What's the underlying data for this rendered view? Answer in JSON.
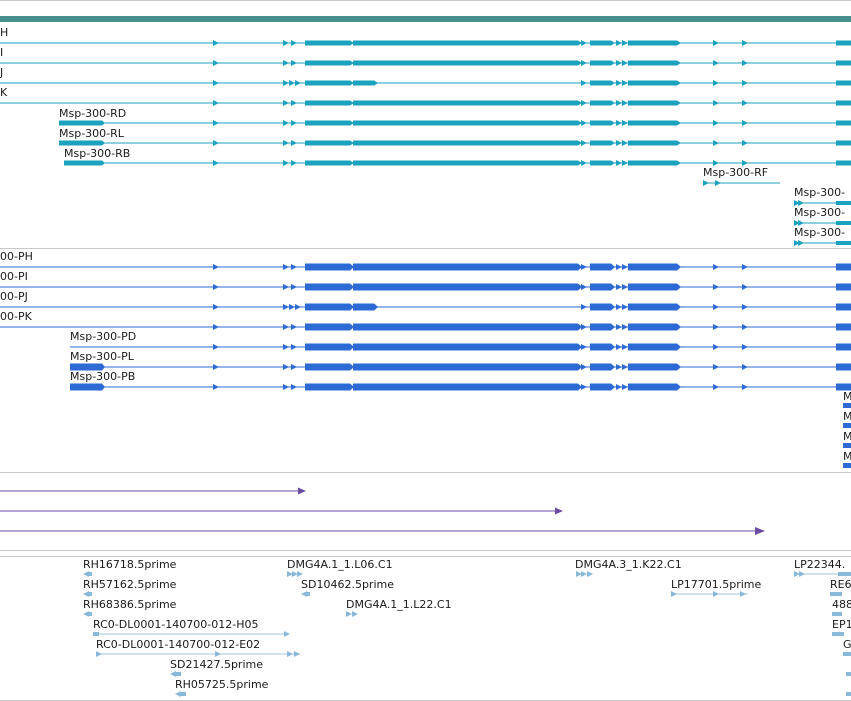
{
  "colors": {
    "gene_track_bar": "#468f8a",
    "transcript": "#1aa2bf",
    "transcript_line": "#1aa2bf",
    "protein": "#2e6ad4",
    "alignment": "#6b4ba4",
    "est": "#88b8da",
    "est_line": "#9cc5e4",
    "divider": "#c8c8c8"
  },
  "transcripts": {
    "labels": {
      "rh": "H",
      "ri": "I",
      "rj": "J",
      "rk": "K",
      "rd": "Msp-300-RD",
      "rl": "Msp-300-RL",
      "rb": "Msp-300-RB",
      "rf": "Msp-300-RF",
      "r9": "Msp-300-",
      "r10": "Msp-300-",
      "r11": "Msp-300-"
    }
  },
  "proteins": {
    "labels": {
      "ph": "00-PH",
      "pi": "00-PI",
      "pj": "00-PJ",
      "pk": "00-PK",
      "pd": "Msp-300-PD",
      "pl": "Msp-300-PL",
      "pb": "Msp-300-PB",
      "m1": "M",
      "m2": "M",
      "m3": "M",
      "m4": "M"
    }
  },
  "ests": {
    "labels": {
      "e1": "RH16718.5prime",
      "e2": "RH57162.5prime",
      "e3": "RH68386.5prime",
      "e4": "RC0-DL0001-140700-012-H05",
      "e5": "RC0-DL0001-140700-012-E02",
      "e6": "SD21427.5prime",
      "e7": "RH05725.5prime",
      "e8": "DMG4A.1_1.L06.C1",
      "e9": "SD10462.5prime",
      "e10": "DMG4A.1_1.L22.C1",
      "e11": "DMG4A.3_1.K22.C1",
      "e12": "LP17701.5prime",
      "e13": "LP22344.",
      "e14": "RE6",
      "e15": "488",
      "e16": "EP1",
      "e17": "G",
      "e18": "",
      "e19": ""
    }
  }
}
